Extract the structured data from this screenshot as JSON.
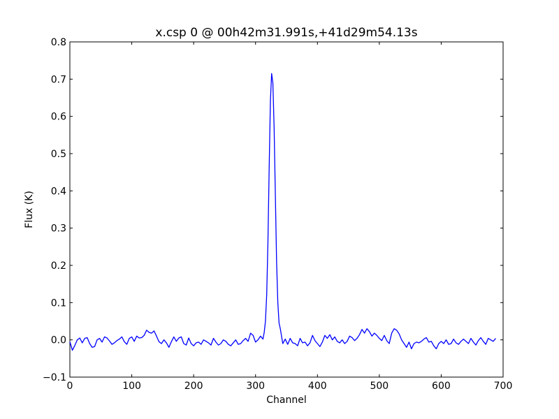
{
  "chart_data": {
    "type": "line",
    "title": "x.csp 0 @ 00h42m31.991s,+41d29m54.13s",
    "xlabel": "Channel",
    "ylabel": "Flux (K)",
    "xlim": [
      0,
      700
    ],
    "ylim": [
      -0.1,
      0.8
    ],
    "x_ticks": [
      0,
      100,
      200,
      300,
      400,
      500,
      600,
      700
    ],
    "y_ticks": [
      -0.1,
      0.0,
      0.1,
      0.2,
      0.3,
      0.4,
      0.5,
      0.6,
      0.7,
      0.8
    ],
    "x_tick_labels": [
      "0",
      "100",
      "200",
      "300",
      "400",
      "500",
      "600",
      "700"
    ],
    "y_tick_labels": [
      "−0.1",
      "0.0",
      "0.1",
      "0.2",
      "0.3",
      "0.4",
      "0.5",
      "0.6",
      "0.7",
      "0.8"
    ],
    "grid": false,
    "line_color": "#0000ff",
    "series": [
      {
        "x": [
          0,
          4,
          8,
          12,
          16,
          20,
          24,
          28,
          32,
          36,
          40,
          44,
          48,
          52,
          56,
          60,
          64,
          68,
          72,
          76,
          80,
          84,
          88,
          92,
          96,
          100,
          104,
          108,
          112,
          116,
          120,
          124,
          128,
          132,
          136,
          140,
          144,
          148,
          152,
          156,
          160,
          164,
          168,
          172,
          176,
          180,
          184,
          188,
          192,
          196,
          200,
          204,
          208,
          212,
          216,
          220,
          224,
          228,
          232,
          236,
          240,
          244,
          248,
          252,
          256,
          260,
          264,
          268,
          272,
          276,
          280,
          284,
          288,
          292,
          296,
          300,
          304,
          308,
          312,
          314,
          316,
          318,
          320,
          322,
          324,
          326,
          328,
          330,
          332,
          334,
          336,
          338,
          340,
          344,
          348,
          352,
          356,
          360,
          364,
          368,
          372,
          376,
          380,
          384,
          388,
          392,
          396,
          400,
          404,
          408,
          412,
          416,
          420,
          424,
          428,
          432,
          436,
          440,
          444,
          448,
          452,
          456,
          460,
          464,
          468,
          472,
          476,
          480,
          484,
          488,
          492,
          496,
          500,
          504,
          508,
          512,
          516,
          520,
          524,
          528,
          532,
          536,
          540,
          544,
          548,
          552,
          556,
          560,
          564,
          568,
          572,
          576,
          580,
          584,
          588,
          592,
          596,
          600,
          604,
          608,
          612,
          616,
          620,
          624,
          628,
          632,
          636,
          640,
          644,
          648,
          652,
          656,
          660,
          664,
          668,
          672,
          676,
          680,
          684,
          688
        ],
        "y": [
          -0.005,
          -0.028,
          -0.015,
          0.0,
          0.005,
          -0.008,
          0.004,
          0.006,
          -0.01,
          -0.02,
          -0.018,
          0.0,
          0.004,
          -0.006,
          0.008,
          0.005,
          -0.003,
          -0.012,
          -0.008,
          -0.002,
          0.002,
          0.008,
          -0.005,
          -0.012,
          0.004,
          0.008,
          -0.004,
          0.01,
          0.005,
          0.006,
          0.012,
          0.026,
          0.02,
          0.018,
          0.024,
          0.01,
          -0.005,
          -0.01,
          0.0,
          -0.008,
          -0.02,
          -0.005,
          0.008,
          -0.004,
          0.005,
          0.008,
          -0.01,
          -0.014,
          0.005,
          -0.01,
          -0.016,
          -0.008,
          -0.006,
          -0.012,
          0.0,
          -0.004,
          -0.008,
          -0.014,
          0.004,
          -0.006,
          -0.014,
          -0.01,
          0.0,
          -0.004,
          -0.012,
          -0.016,
          -0.008,
          0.0,
          -0.012,
          -0.01,
          -0.002,
          0.004,
          -0.004,
          0.018,
          0.012,
          -0.006,
          0.0,
          0.01,
          0.002,
          0.02,
          0.05,
          0.12,
          0.26,
          0.46,
          0.64,
          0.715,
          0.69,
          0.57,
          0.39,
          0.21,
          0.1,
          0.045,
          0.03,
          -0.01,
          0.002,
          -0.012,
          0.004,
          -0.008,
          -0.01,
          -0.016,
          0.004,
          -0.008,
          -0.006,
          -0.016,
          -0.008,
          0.012,
          -0.002,
          -0.01,
          -0.018,
          -0.006,
          0.012,
          0.004,
          0.014,
          0.0,
          0.008,
          -0.004,
          -0.008,
          0.0,
          -0.01,
          -0.004,
          0.01,
          0.006,
          -0.002,
          0.004,
          0.014,
          0.028,
          0.018,
          0.03,
          0.022,
          0.01,
          0.018,
          0.012,
          0.004,
          -0.002,
          0.012,
          -0.002,
          -0.01,
          0.018,
          0.03,
          0.026,
          0.016,
          0.0,
          -0.01,
          -0.02,
          -0.006,
          -0.024,
          -0.01,
          -0.006,
          -0.008,
          -0.004,
          0.002,
          0.006,
          -0.006,
          -0.004,
          -0.016,
          -0.024,
          -0.01,
          -0.004,
          -0.01,
          0.0,
          -0.012,
          -0.01,
          0.002,
          -0.008,
          -0.012,
          -0.004,
          0.002,
          -0.004,
          -0.01,
          0.004,
          -0.006,
          -0.014,
          -0.002,
          0.006,
          -0.004,
          -0.012,
          0.004,
          0.0,
          -0.004,
          0.004
        ]
      }
    ]
  }
}
